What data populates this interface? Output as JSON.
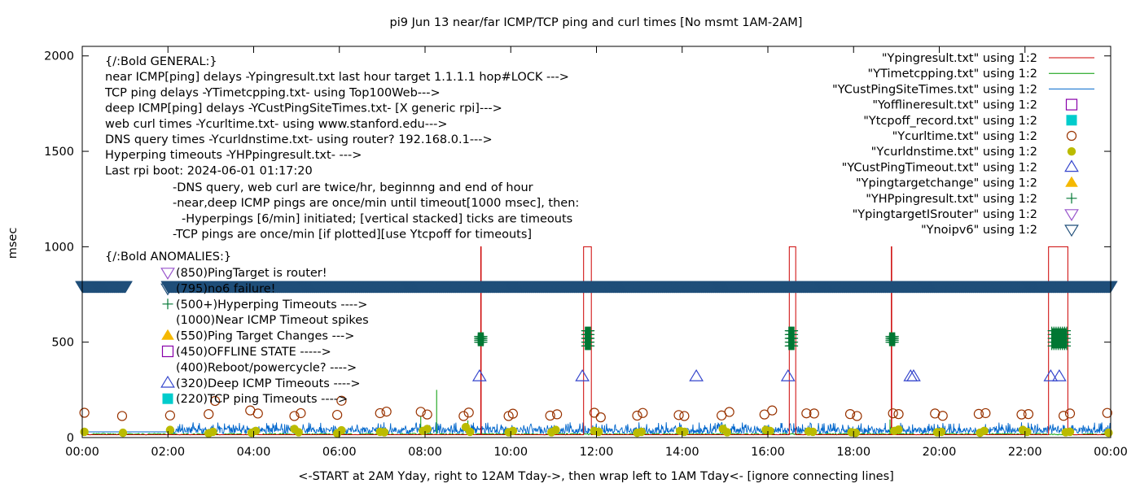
{
  "chart_data": {
    "type": "line",
    "title": "pi9 Jun 13  near/far ICMP/TCP ping and curl times [No msmt 1AM-2AM]",
    "xlabel": "<-START at 2AM Yday, right to 12AM Tday->, then wrap left to 1AM Tday<- [ignore connecting lines]",
    "ylabel": "msec",
    "xlim": [
      0,
      24
    ],
    "ylim": [
      0,
      2050
    ],
    "grid": false,
    "legend_position": "top-right",
    "x_ticks": [
      "00:00",
      "02:00",
      "04:00",
      "06:00",
      "08:00",
      "10:00",
      "12:00",
      "14:00",
      "16:00",
      "18:00",
      "20:00",
      "22:00",
      "00:00"
    ],
    "y_ticks": [
      0,
      500,
      1000,
      1500,
      2000
    ],
    "legend": [
      {
        "label": "\"Ypingresult.txt\" using 1:2",
        "symbol": "line",
        "color": "#cc0000"
      },
      {
        "label": "\"YTimetcpping.txt\" using 1:2",
        "symbol": "line",
        "color": "#009900"
      },
      {
        "label": "\"YCustPingSiteTimes.txt\" using 1:2",
        "symbol": "line",
        "color": "#0066cc"
      },
      {
        "label": "\"Yofflineresult.txt\" using 1:2",
        "symbol": "open-square",
        "color": "#8800aa"
      },
      {
        "label": "\"Ytcpoff_record.txt\" using 1:2",
        "symbol": "filled-square",
        "color": "#00cccc"
      },
      {
        "label": "\"Ycurltime.txt\" using 1:2",
        "symbol": "open-circle",
        "color": "#993300"
      },
      {
        "label": "\"Ycurldnstime.txt\" using 1:2",
        "symbol": "filled-circle",
        "color": "#bbbb00"
      },
      {
        "label": "\"YCustPingTimeout.txt\" using 1:2",
        "symbol": "open-triangle",
        "color": "#3344cc"
      },
      {
        "label": "\"Ypingtargetchange\" using 1:2",
        "symbol": "filled-triangle",
        "color": "#f5b800"
      },
      {
        "label": "\"YHPpingresult.txt\" using 1:2",
        "symbol": "plus",
        "color": "#007733"
      },
      {
        "label": "\"YpingtargetISrouter\" using 1:2",
        "symbol": "open-triangle-down",
        "color": "#9955cc"
      },
      {
        "label": "\"Ynoipv6\" using 1:2",
        "symbol": "open-triangle-down",
        "color": "#1f4e79"
      }
    ],
    "annotations": {
      "general": [
        "{/:Bold GENERAL:}",
        "near ICMP[ping] delays -Ypingresult.txt last hour target 1.1.1.1 hop#LOCK --->",
        "TCP ping delays -YTimetcpping.txt- using Top100Web--->",
        "deep ICMP[ping] delays -YCustPingSiteTimes.txt- [X generic rpi]--->",
        "web curl times -Ycurltime.txt- using www.stanford.edu--->",
        "DNS query times -Ycurldnstime.txt- using router? 192.168.0.1--->",
        "Hyperping timeouts -YHPpingresult.txt- --->",
        "Last rpi boot: 2024-06-01 01:17:20"
      ],
      "notes": [
        "-DNS query, web curl are twice/hr, beginnng and end of hour",
        "-near,deep ICMP pings are once/min until timeout[1000 msec], then:",
        "-Hyperpings [6/min] initiated; [vertical stacked] ticks are timeouts",
        "-TCP pings are once/min [if plotted][use Ytcpoff for timeouts]"
      ],
      "anomalies_title": "{/:Bold ANOMALIES:}",
      "anomalies": [
        {
          "text": "(850)PingTarget is router!",
          "symbol": "open-triangle-down",
          "color": "#9955cc"
        },
        {
          "text": "(795)no6 failure!",
          "symbol": "open-triangle-down",
          "color": "#1f4e79"
        },
        {
          "text": "(500+)Hyperping Timeouts ---->",
          "symbol": "plus",
          "color": "#007733"
        },
        {
          "text": "(1000)Near ICMP Timeout spikes",
          "symbol": "none",
          "color": "#cc0000"
        },
        {
          "text": "(550)Ping Target Changes --->",
          "symbol": "filled-triangle",
          "color": "#f5b800"
        },
        {
          "text": "(450)OFFLINE STATE ----->",
          "symbol": "open-square",
          "color": "#8800aa"
        },
        {
          "text": "(400)Reboot/powercycle? ---->",
          "symbol": "none",
          "color": "#000000"
        },
        {
          "text": "(320)Deep ICMP Timeouts ---->",
          "symbol": "open-triangle",
          "color": "#3344cc"
        },
        {
          "text": "(220)TCP ping Timeouts ---->",
          "symbol": "filled-square",
          "color": "#00cccc"
        }
      ]
    },
    "series": {
      "ypingresult": {
        "baseline": 15,
        "spikes": [
          9.3,
          18.88
        ],
        "timeout_windows": [
          [
            11.7,
            11.88
          ],
          [
            16.5,
            16.65
          ],
          [
            22.55,
            23.0
          ]
        ],
        "spike_value": 1000
      },
      "ytimetcpping": {
        "baseline": 18,
        "extra_spikes": [
          [
            7.9,
            110
          ],
          [
            8.27,
            250
          ],
          [
            9.0,
            90
          ],
          [
            15.0,
            70
          ],
          [
            18.85,
            95
          ]
        ]
      },
      "ycustpingsitetimes": {
        "baseline_range": [
          20,
          80
        ],
        "pre_start_level": 30
      },
      "yhppingresult": {
        "stacks": [
          {
            "x": 9.3,
            "values": [
              500,
              510,
              520,
              530
            ]
          },
          {
            "x": 11.8,
            "values": [
              480,
              500,
              520,
              540,
              560
            ]
          },
          {
            "x": 16.55,
            "values": [
              480,
              500,
              520,
              540,
              560
            ]
          },
          {
            "x": 18.9,
            "values": [
              500,
              510,
              520,
              530
            ]
          },
          {
            "x": 22.8,
            "values": [
              480,
              500,
              520,
              540,
              560
            ]
          }
        ]
      },
      "ycustpingtimeout": {
        "x": [
          9.27,
          11.67,
          14.33,
          16.47,
          19.33,
          19.4,
          22.6,
          22.8
        ],
        "y": 320
      },
      "ynoipv6": {
        "y": 795,
        "x_start": 2.0,
        "x_end": 24.0,
        "second_segment": [
          0.0,
          1.02
        ]
      },
      "ycurltime": {
        "x": [
          0.05,
          0.93,
          2.05,
          2.95,
          3.1,
          3.92,
          4.1,
          4.95,
          5.1,
          5.95,
          6.05,
          6.95,
          7.1,
          7.9,
          8.05,
          8.9,
          9.02,
          9.95,
          10.05,
          10.92,
          11.08,
          11.95,
          12.1,
          12.95,
          13.08,
          13.92,
          14.05,
          14.92,
          15.1,
          15.92,
          16.1,
          16.9,
          17.08,
          17.92,
          18.08,
          18.92,
          19.05,
          19.9,
          20.08,
          20.92,
          21.08,
          21.92,
          22.08,
          22.9,
          23.05,
          23.92
        ],
        "y": [
          130,
          113,
          116,
          123,
          192,
          142,
          126,
          113,
          128,
          119,
          193,
          128,
          136,
          135,
          121,
          113,
          131,
          113,
          125,
          115,
          122,
          130,
          106,
          115,
          129,
          118,
          113,
          116,
          134,
          121,
          142,
          127,
          126,
          123,
          113,
          127,
          123,
          126,
          114,
          124,
          128,
          121,
          123,
          114,
          126,
          129
        ]
      },
      "ycurldnstime": {
        "x": [
          0.05,
          0.95,
          2.05,
          2.95,
          3.05,
          3.95,
          4.05,
          4.95,
          5.05,
          5.95,
          6.05,
          6.95,
          7.05,
          7.95,
          8.05,
          8.95,
          9.05,
          9.95,
          10.05,
          10.95,
          11.05,
          11.95,
          12.05,
          12.95,
          13.05,
          13.95,
          14.05,
          14.95,
          15.05,
          15.95,
          16.05,
          16.95,
          17.05,
          17.95,
          18.05,
          18.95,
          19.05,
          19.95,
          20.05,
          20.95,
          21.05,
          21.95,
          22.05,
          22.95,
          23.05,
          23.95
        ],
        "y": [
          30,
          25,
          40,
          22,
          30,
          25,
          35,
          45,
          28,
          22,
          38,
          30,
          28,
          35,
          45,
          55,
          30,
          28,
          35,
          28,
          40,
          35,
          30,
          25,
          30,
          35,
          30,
          45,
          28,
          40,
          35,
          32,
          30,
          28,
          25,
          35,
          42,
          28,
          30,
          25,
          35,
          40,
          30,
          28,
          30,
          25
        ]
      }
    }
  }
}
